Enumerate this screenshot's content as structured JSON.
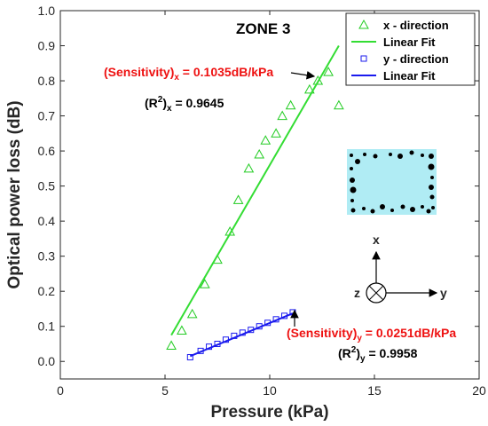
{
  "chart_data": {
    "type": "scatter",
    "title": "ZONE 3",
    "xlabel": "Pressure (kPa)",
    "ylabel": "Optical power loss (dB)",
    "xlim": [
      0,
      20
    ],
    "ylim": [
      -0.05,
      1.0
    ],
    "xticks": [
      0,
      5,
      10,
      15,
      20
    ],
    "yticks": [
      0.0,
      0.1,
      0.2,
      0.3,
      0.4,
      0.5,
      0.6,
      0.7,
      0.8,
      0.9,
      1.0
    ],
    "grid": false,
    "legend_position": "top-right",
    "series": [
      {
        "name": "x - direction",
        "marker": "triangle",
        "color": "#22cc22",
        "x": [
          5.3,
          5.8,
          6.3,
          6.9,
          7.5,
          8.1,
          8.5,
          9.0,
          9.5,
          9.8,
          10.3,
          10.6,
          11.0,
          11.9,
          12.3,
          12.8,
          13.3
        ],
        "y": [
          0.045,
          0.088,
          0.135,
          0.22,
          0.29,
          0.37,
          0.46,
          0.55,
          0.59,
          0.63,
          0.65,
          0.7,
          0.73,
          0.775,
          0.8,
          0.825,
          0.73
        ]
      },
      {
        "name": "Linear Fit",
        "line": true,
        "color": "#33dd33",
        "x": [
          5.3,
          13.3
        ],
        "y": [
          0.075,
          0.9
        ]
      },
      {
        "name": "y - direction",
        "marker": "square",
        "color": "#1a1aee",
        "x": [
          6.2,
          6.7,
          7.1,
          7.5,
          7.9,
          8.3,
          8.7,
          9.1,
          9.5,
          9.9,
          10.3,
          10.7,
          11.1
        ],
        "y": [
          0.012,
          0.03,
          0.042,
          0.05,
          0.062,
          0.073,
          0.082,
          0.09,
          0.1,
          0.11,
          0.12,
          0.13,
          0.14
        ]
      },
      {
        "name": "Linear Fit",
        "line": true,
        "color": "#1a1aee",
        "x": [
          6.2,
          11.1
        ],
        "y": [
          0.015,
          0.137
        ]
      }
    ],
    "annotations": {
      "sens_x_main": "(Sensitivity)",
      "sens_x_sub": "x",
      "sens_x_value": " = 0.1035dB/kPa",
      "r2_x_main": "(R",
      "r2_x_sup": "2",
      "r2_x_close": ")",
      "r2_x_sub": "x",
      "r2_x_value": " = 0.9645",
      "sens_y_main": "(Sensitivity)",
      "sens_y_sub": "y",
      "sens_y_value": " = 0.0251dB/kPa",
      "r2_y_main": "(R",
      "r2_y_sup": "2",
      "r2_y_close": ")",
      "r2_y_sub": "y",
      "r2_y_value": " = 0.9958"
    },
    "axis_diagram": {
      "x_label": "x",
      "y_label": "y",
      "z_label": "z"
    },
    "inset_color": "#b0ecf4",
    "annotation_color_red": "#ee1111"
  }
}
